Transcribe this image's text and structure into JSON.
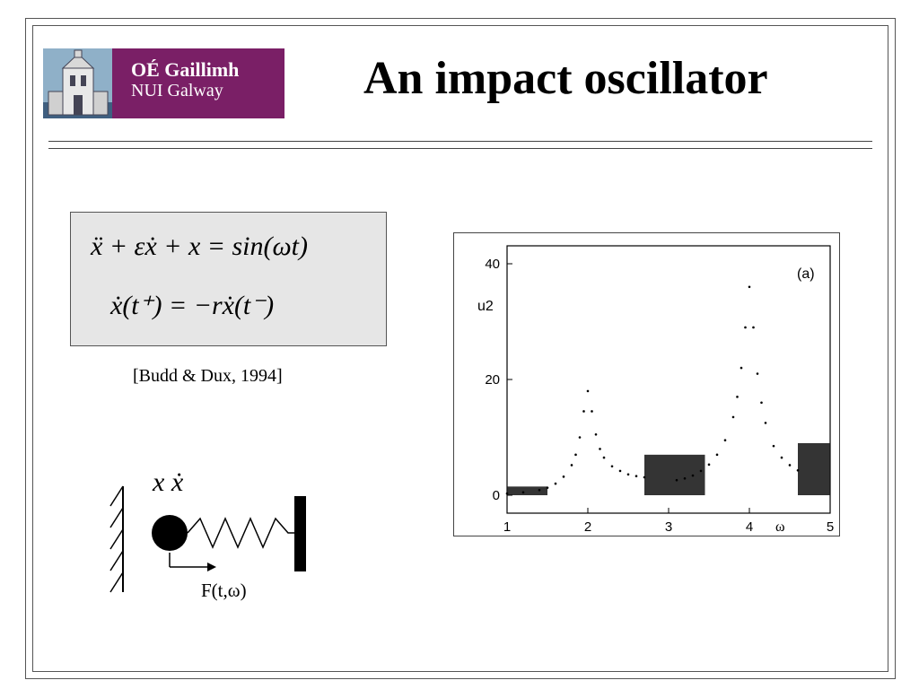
{
  "title": "An impact oscillator",
  "logo": {
    "line1": "OÉ Gaillimh",
    "line2": "NUI Galway"
  },
  "equations": {
    "eq1": "ẍ + εẋ + x = sin(ωt)",
    "eq2": "ẋ(t⁺) = −rẋ(t⁻)"
  },
  "citation": "[Budd & Dux, 1994]",
  "diagram": {
    "variables": "x ẋ",
    "force_label": "F(t,ω)"
  },
  "chart_data": {
    "type": "scatter",
    "panel_label": "(a)",
    "xlabel": "ω",
    "ylabel": "u2",
    "xlim": [
      1,
      5
    ],
    "ylim": [
      0,
      40
    ],
    "x_ticks": [
      "1",
      "2",
      "3",
      "4",
      "5"
    ],
    "y_ticks": [
      "0",
      "20",
      "40"
    ],
    "series": [
      {
        "x": [
          1.0,
          1.2,
          1.4,
          1.5,
          1.6,
          1.7,
          1.8,
          1.85,
          1.9,
          1.95,
          2.0,
          2.05,
          2.1,
          2.15,
          2.2,
          2.3,
          2.4,
          2.5,
          2.6,
          2.7,
          3.1,
          3.2,
          3.3,
          3.4,
          3.5,
          3.6,
          3.7,
          3.8,
          3.85,
          3.9,
          3.95,
          4.0,
          4.05,
          4.1,
          4.15,
          4.2,
          4.3,
          4.4,
          4.5,
          4.6
        ],
        "y": [
          0.3,
          0.5,
          0.9,
          1.3,
          2.0,
          3.2,
          5.2,
          7.0,
          10.0,
          14.5,
          18.0,
          14.5,
          10.5,
          8.0,
          6.5,
          5.0,
          4.2,
          3.6,
          3.3,
          3.1,
          2.6,
          2.9,
          3.4,
          4.2,
          5.3,
          7.0,
          9.5,
          13.5,
          17.0,
          22.0,
          29.0,
          36.0,
          29.0,
          21.0,
          16.0,
          12.5,
          8.5,
          6.5,
          5.2,
          4.3
        ]
      }
    ],
    "chaotic_bands": [
      {
        "x": [
          1.0,
          1.5
        ],
        "y": [
          0,
          1.5
        ]
      },
      {
        "x": [
          2.7,
          3.45
        ],
        "y": [
          0,
          7
        ]
      },
      {
        "x": [
          4.6,
          5.0
        ],
        "y": [
          0,
          9
        ]
      }
    ]
  }
}
